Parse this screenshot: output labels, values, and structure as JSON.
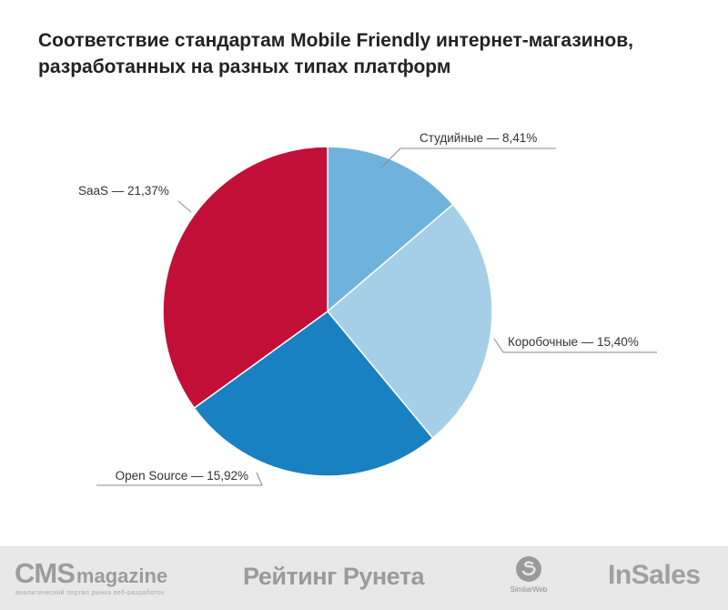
{
  "title": {
    "line1": "Соответствие стандартам Mobile Friendly интернет-магазинов,",
    "line2": "разработанных на разных типах платформ"
  },
  "chart_data": {
    "type": "pie",
    "title": "Соответствие стандартам Mobile Friendly интернет-магазинов, разработанных на разных типах платформ",
    "start_angle_deg": 0,
    "direction": "clockwise",
    "slices": [
      {
        "label": "Студийные — 8,41%",
        "value": 8.41,
        "color": "#6fb3dc"
      },
      {
        "label": "Коробочные — 15,40%",
        "value": 15.4,
        "color": "#a4cfe7"
      },
      {
        "label": "Open Source — 15,92%",
        "value": 15.92,
        "color": "#1980c2"
      },
      {
        "label": "SaaS — 21,37%",
        "value": 21.37,
        "color": "#c31038"
      }
    ]
  },
  "footer": {
    "cms_main": "CMS",
    "cms_magazine": "magazine",
    "cms_subtitle": "аналитический портал рынка веб-разработок",
    "rating": "Рейтинг Рунета",
    "similarweb": "SimilarWeb",
    "insales": "InSales"
  }
}
